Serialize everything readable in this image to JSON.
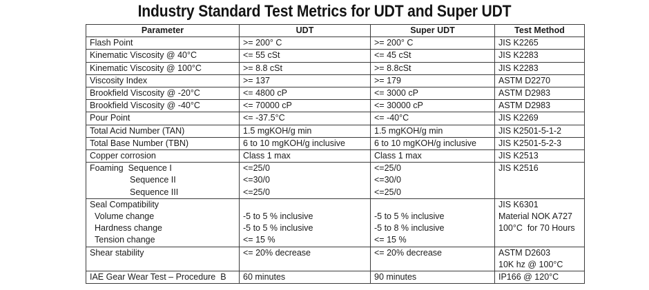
{
  "title": "Industry Standard Test Metrics for UDT and Super UDT",
  "headers": [
    "Parameter",
    "UDT",
    "Super UDT",
    "Test Method"
  ],
  "rows": [
    {
      "parameter": [
        "Flash Point"
      ],
      "udt": [
        ">= 200° C"
      ],
      "super_udt": [
        ">= 200° C"
      ],
      "method": [
        "JIS K2265"
      ]
    },
    {
      "parameter": [
        "Kinematic Viscosity @ 40°C"
      ],
      "udt": [
        "<= 55 cSt"
      ],
      "super_udt": [
        "<= 45 cSt"
      ],
      "method": [
        "JIS K2283"
      ]
    },
    {
      "parameter": [
        "Kinematic Viscosity @ 100°C"
      ],
      "udt": [
        ">= 8.8 cSt"
      ],
      "super_udt": [
        ">= 8.8cSt"
      ],
      "method": [
        "JIS K2283"
      ]
    },
    {
      "parameter": [
        "Viscosity Index"
      ],
      "udt": [
        ">= 137"
      ],
      "super_udt": [
        ">= 179"
      ],
      "method": [
        "ASTM D2270"
      ]
    },
    {
      "parameter": [
        "Brookfield Viscosity @ -20°C"
      ],
      "udt": [
        "<= 4800 cP"
      ],
      "super_udt": [
        "<= 3000 cP"
      ],
      "method": [
        "ASTM D2983"
      ]
    },
    {
      "parameter": [
        "Brookfield Viscosity @ -40°C"
      ],
      "udt": [
        "<= 70000 cP"
      ],
      "super_udt": [
        "<= 30000 cP"
      ],
      "method": [
        "ASTM D2983"
      ]
    },
    {
      "parameter": [
        "Pour Point"
      ],
      "udt": [
        "<= -37.5°C"
      ],
      "super_udt": [
        "<= -40°C"
      ],
      "method": [
        "JIS K2269"
      ]
    },
    {
      "parameter": [
        "Total Acid Number (TAN)"
      ],
      "udt": [
        "1.5 mgKOH/g min"
      ],
      "super_udt": [
        "1.5 mgKOH/g min"
      ],
      "method": [
        "JIS K2501-5-1-2"
      ]
    },
    {
      "parameter": [
        "Total Base Number (TBN)"
      ],
      "udt": [
        "6 to 10 mgKOH/g inclusive"
      ],
      "super_udt": [
        "6 to 10 mgKOH/g inclusive"
      ],
      "method": [
        "JIS K2501-5-2-3"
      ]
    },
    {
      "parameter": [
        "Copper corrosion"
      ],
      "udt": [
        "Class 1 max"
      ],
      "super_udt": [
        "Class 1 max"
      ],
      "method": [
        "JIS K2513"
      ]
    },
    {
      "parameter": [
        "Foaming  Sequence I",
        "Sequence II",
        "Sequence III"
      ],
      "udt": [
        "<=25/0",
        "<=30/0",
        "<=25/0"
      ],
      "super_udt": [
        "<=25/0",
        "<=30/0",
        "<=25/0"
      ],
      "method": [
        "JIS K2516"
      ]
    },
    {
      "parameter": [
        "Seal Compatibility",
        "Volume change",
        "Hardness change",
        "Tension change"
      ],
      "udt": [
        "",
        "-5 to 5 % inclusive",
        "-5 to 5 % inclusive",
        "<= 15 %"
      ],
      "super_udt": [
        "",
        "-5 to 5 % inclusive",
        "-5 to 8 % inclusive",
        "<= 15 %"
      ],
      "method": [
        "JIS K6301",
        "Material NOK A727",
        "100°C  for 70 Hours"
      ]
    },
    {
      "parameter": [
        "Shear stability"
      ],
      "udt": [
        "<= 20% decrease"
      ],
      "super_udt": [
        "<= 20% decrease"
      ],
      "method": [
        "ASTM D2603",
        "10K hz @ 100°C"
      ]
    },
    {
      "parameter": [
        "IAE Gear Wear Test – Procedure  B"
      ],
      "udt": [
        "60 minutes"
      ],
      "super_udt": [
        "90 minutes"
      ],
      "method": [
        "IP166 @ 120°C"
      ]
    }
  ]
}
